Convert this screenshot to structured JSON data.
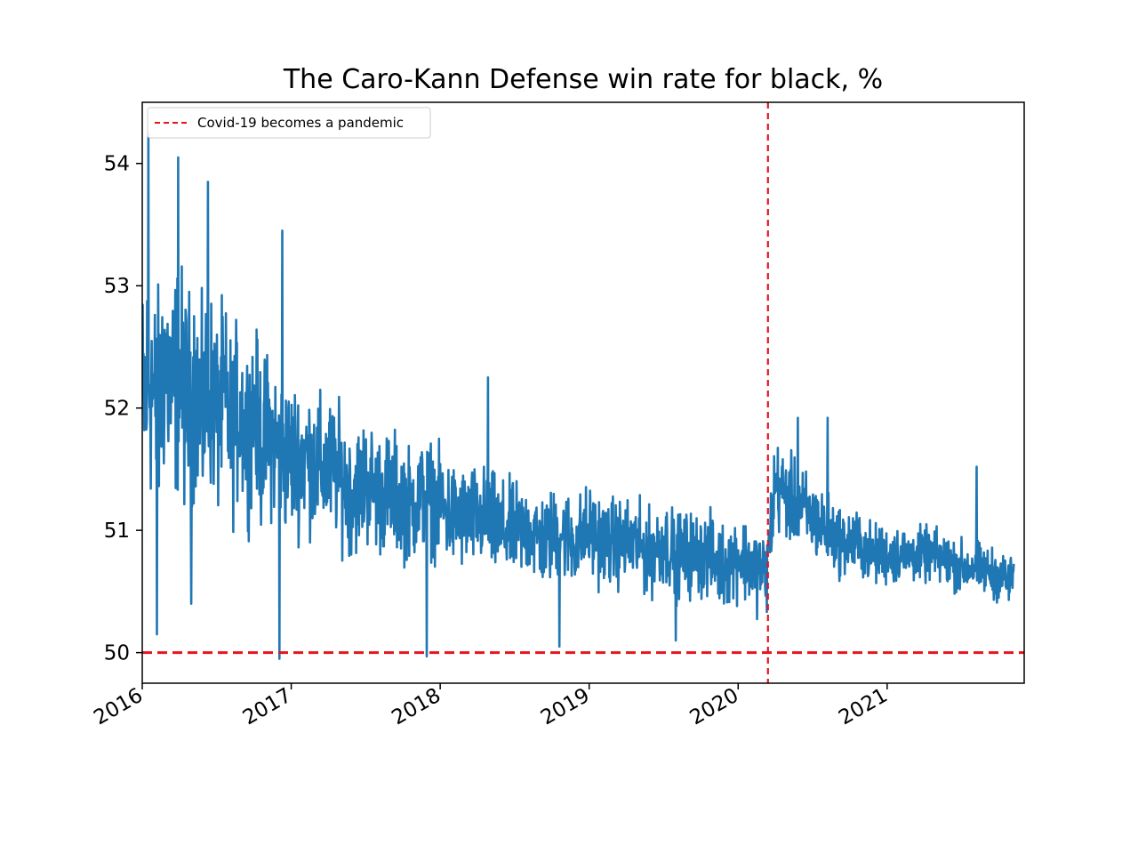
{
  "chart_data": {
    "type": "line",
    "title": "The Caro-Kann Defense win rate for black, %",
    "xlabel": "",
    "ylabel": "",
    "xlim": [
      2016.0,
      2021.92
    ],
    "ylim": [
      49.75,
      54.5
    ],
    "x_ticks": [
      2016,
      2017,
      2018,
      2019,
      2020,
      2021
    ],
    "x_tick_labels": [
      "2016",
      "2017",
      "2018",
      "2019",
      "2020",
      "2021"
    ],
    "y_ticks": [
      50,
      51,
      52,
      53,
      54
    ],
    "y_tick_labels": [
      "50",
      "51",
      "52",
      "53",
      "54"
    ],
    "grid": false,
    "legend": {
      "position": "top-left",
      "entries": [
        {
          "label": "Covid-19 becomes a pandemic",
          "style": "dashed",
          "color": "#e6141e"
        }
      ]
    },
    "reference_lines": [
      {
        "orientation": "horizontal",
        "value": 50,
        "color": "#e6141e",
        "style": "dashed"
      },
      {
        "orientation": "vertical",
        "value": 2020.2,
        "color": "#e6141e",
        "style": "dashed",
        "label": "Covid-19 becomes a pandemic"
      }
    ],
    "series": [
      {
        "name": "win rate",
        "color": "#1f77b4",
        "x": [
          2016.0,
          2016.05,
          2016.1,
          2016.15,
          2016.2,
          2016.25,
          2016.3,
          2016.35,
          2016.4,
          2016.45,
          2016.5,
          2016.55,
          2016.6,
          2016.65,
          2016.7,
          2016.75,
          2016.8,
          2016.85,
          2016.9,
          2016.95,
          2017.0,
          2017.1,
          2017.2,
          2017.3,
          2017.4,
          2017.5,
          2017.6,
          2017.7,
          2017.8,
          2017.9,
          2018.0,
          2018.1,
          2018.2,
          2018.3,
          2018.4,
          2018.5,
          2018.6,
          2018.7,
          2018.8,
          2018.9,
          2019.0,
          2019.1,
          2019.2,
          2019.3,
          2019.4,
          2019.5,
          2019.6,
          2019.7,
          2019.8,
          2019.9,
          2020.0,
          2020.1,
          2020.19,
          2020.25,
          2020.3,
          2020.4,
          2020.5,
          2020.6,
          2020.7,
          2020.8,
          2020.9,
          2021.0,
          2021.1,
          2021.2,
          2021.3,
          2021.4,
          2021.5,
          2021.6,
          2021.7,
          2021.8,
          2021.85
        ],
        "values": [
          52.0,
          52.3,
          51.9,
          52.4,
          52.1,
          52.3,
          52.0,
          52.2,
          51.9,
          52.2,
          51.9,
          52.1,
          51.8,
          52.0,
          51.8,
          52.0,
          51.7,
          51.8,
          51.7,
          51.6,
          51.6,
          51.6,
          51.5,
          51.5,
          51.3,
          51.4,
          51.3,
          51.3,
          51.2,
          51.3,
          51.2,
          51.1,
          51.1,
          51.1,
          51.0,
          51.0,
          51.0,
          50.9,
          51.0,
          50.9,
          51.0,
          50.9,
          50.9,
          50.9,
          50.8,
          50.9,
          50.8,
          50.8,
          50.8,
          50.7,
          50.8,
          50.7,
          50.65,
          51.4,
          51.3,
          51.2,
          51.1,
          51.0,
          50.9,
          50.9,
          50.8,
          50.8,
          50.8,
          50.8,
          50.8,
          50.75,
          50.7,
          50.7,
          50.65,
          50.6,
          50.6
        ],
        "noise_amplitude": [
          0.75,
          0.75,
          0.72,
          0.7,
          0.7,
          0.68,
          0.66,
          0.64,
          0.62,
          0.6,
          0.58,
          0.56,
          0.55,
          0.54,
          0.52,
          0.5,
          0.5,
          0.48,
          0.47,
          0.45,
          0.45,
          0.43,
          0.42,
          0.4,
          0.38,
          0.38,
          0.36,
          0.36,
          0.34,
          0.34,
          0.32,
          0.32,
          0.3,
          0.3,
          0.3,
          0.28,
          0.28,
          0.28,
          0.27,
          0.27,
          0.27,
          0.27,
          0.26,
          0.26,
          0.26,
          0.26,
          0.26,
          0.26,
          0.25,
          0.25,
          0.25,
          0.25,
          0.25,
          0.27,
          0.26,
          0.25,
          0.24,
          0.22,
          0.2,
          0.2,
          0.18,
          0.18,
          0.17,
          0.16,
          0.16,
          0.16,
          0.16,
          0.15,
          0.15,
          0.15,
          0.15
        ],
        "sample_step_years": 0.00274,
        "spikes": [
          {
            "x": 2016.04,
            "y": 54.25
          },
          {
            "x": 2016.1,
            "y": 50.15
          },
          {
            "x": 2016.24,
            "y": 54.05
          },
          {
            "x": 2016.44,
            "y": 53.85
          },
          {
            "x": 2016.33,
            "y": 50.4
          },
          {
            "x": 2016.92,
            "y": 49.95
          },
          {
            "x": 2016.94,
            "y": 53.45
          },
          {
            "x": 2017.91,
            "y": 49.97
          },
          {
            "x": 2018.32,
            "y": 52.25
          },
          {
            "x": 2018.8,
            "y": 50.05
          },
          {
            "x": 2019.58,
            "y": 50.1
          },
          {
            "x": 2020.4,
            "y": 51.92
          },
          {
            "x": 2020.6,
            "y": 51.92
          },
          {
            "x": 2021.6,
            "y": 51.52
          }
        ]
      }
    ]
  }
}
